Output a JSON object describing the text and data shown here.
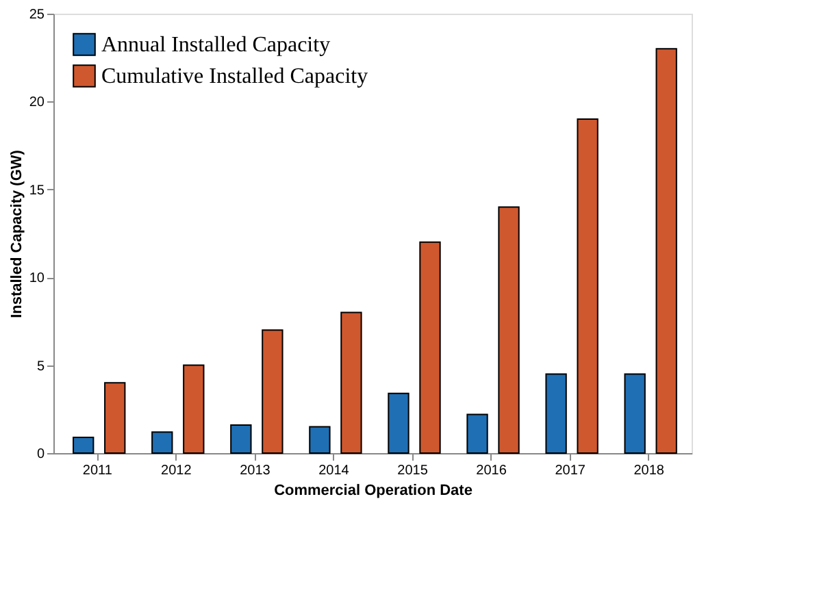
{
  "chart_data": {
    "type": "bar",
    "categories": [
      "2011",
      "2012",
      "2013",
      "2014",
      "2015",
      "2016",
      "2017",
      "2018"
    ],
    "series": [
      {
        "name": "Annual Installed Capacity",
        "color": "#1f6fb4",
        "values": [
          0.9,
          1.2,
          1.6,
          1.5,
          3.4,
          2.2,
          4.5,
          4.5
        ]
      },
      {
        "name": "Cumulative Installed Capacity",
        "color": "#d0582e",
        "values": [
          4,
          5,
          7,
          8,
          12,
          14,
          19,
          23
        ]
      }
    ],
    "xlabel": "Commercial Operation Date",
    "ylabel": "Installed Capacity (GW)",
    "ylim": [
      0,
      25
    ],
    "yticks": [
      0,
      5,
      10,
      15,
      20,
      25
    ],
    "grid": false,
    "legend": "top left"
  }
}
